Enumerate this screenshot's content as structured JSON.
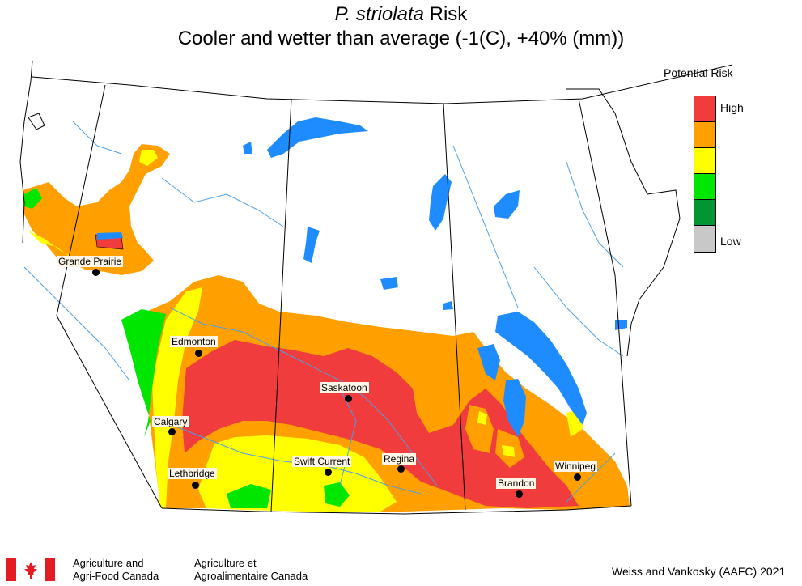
{
  "title": {
    "species": "P. striolata",
    "suffix": " Risk",
    "subtitle": "Cooler and wetter than average (-1(C), +40% (mm))"
  },
  "legend": {
    "title": "Potential Risk",
    "high_label": "High",
    "low_label": "Low",
    "colors": [
      "#f03c3c",
      "#ffa000",
      "#ffff00",
      "#00e600",
      "#009632",
      "#c8c8c8"
    ]
  },
  "cities": [
    {
      "name": "Grande Prairie"
    },
    {
      "name": "Edmonton"
    },
    {
      "name": "Calgary"
    },
    {
      "name": "Lethbridge"
    },
    {
      "name": "Saskatoon"
    },
    {
      "name": "Swift Current"
    },
    {
      "name": "Regina"
    },
    {
      "name": "Brandon"
    },
    {
      "name": "Winnipeg"
    }
  ],
  "footer": {
    "agency_en_line1": "Agriculture and",
    "agency_en_line2": "Agri-Food Canada",
    "agency_fr_line1": "Agriculture et",
    "agency_fr_line2": "Agroalimentaire Canada",
    "credit": "Weiss and Vankosky (AAFC) 2021"
  },
  "colors": {
    "high": "#f03c3c",
    "orange": "#ffa000",
    "yellow": "#ffff00",
    "green": "#00e600",
    "dark_green": "#009632",
    "low": "#c8c8c8",
    "water": "#1e8cff",
    "river": "#4aa0e6"
  }
}
